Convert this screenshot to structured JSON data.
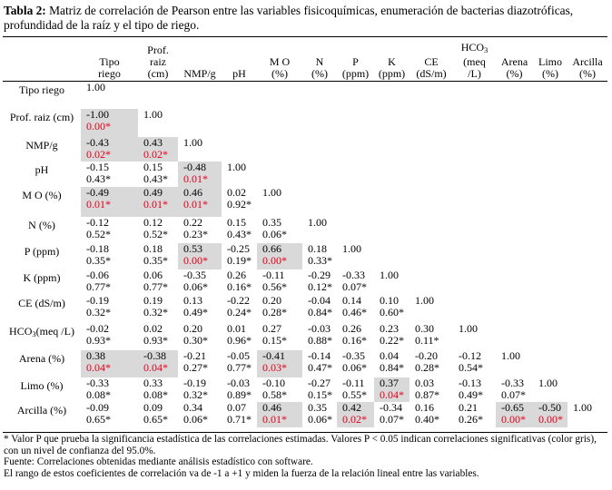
{
  "caption": {
    "label": "Tabla 2:",
    "text": " Matriz de correlación de Pearson entre las variables fisicoquímicas, enumeración de bacterias diazotróficas, profundidad de la raíz y el tipo de riego."
  },
  "columns": [
    {
      "key": "tipo",
      "line1": "Tipo",
      "line2": "riego",
      "line3": ""
    },
    {
      "key": "prof",
      "line1": "Prof.",
      "line2": "raiz",
      "line3": "(cm)"
    },
    {
      "key": "nmp",
      "line1": "NMP/g",
      "line2": "",
      "line3": ""
    },
    {
      "key": "ph",
      "line1": "pH",
      "line2": "",
      "line3": ""
    },
    {
      "key": "mo",
      "line1": "M O",
      "line2": "(%)",
      "line3": ""
    },
    {
      "key": "n",
      "line1": "N",
      "line2": "(%)",
      "line3": ""
    },
    {
      "key": "p",
      "line1": "P",
      "line2": "(ppm)",
      "line3": ""
    },
    {
      "key": "k",
      "line1": "K",
      "line2": "(ppm)",
      "line3": ""
    },
    {
      "key": "ce",
      "line1": "CE",
      "line2": "(dS/m)",
      "line3": ""
    },
    {
      "key": "hco3",
      "line1": "HCO3",
      "line2": "(meq",
      "line3": "/L)"
    },
    {
      "key": "arena",
      "line1": "Arena",
      "line2": "(%)",
      "line3": ""
    },
    {
      "key": "limo",
      "line1": "Limo",
      "line2": "(%)",
      "line3": ""
    },
    {
      "key": "arcilla",
      "line1": "Arcilla",
      "line2": "(%)",
      "line3": ""
    }
  ],
  "rows": [
    {
      "label": "Tipo riego",
      "cells": [
        {
          "r": "1.00",
          "p": "",
          "sig": false
        }
      ]
    },
    {
      "label": "Prof. raiz (cm)",
      "cells": [
        {
          "r": "-1.00",
          "p": "0.00*",
          "sig": true
        },
        {
          "r": "1.00",
          "p": "",
          "sig": false
        }
      ]
    },
    {
      "label": "NMP/g",
      "cells": [
        {
          "r": "-0.43",
          "p": "0.02*",
          "sig": true
        },
        {
          "r": "0.43",
          "p": "0.02*",
          "sig": true
        },
        {
          "r": "1.00",
          "p": "",
          "sig": false
        }
      ]
    },
    {
      "label": "pH",
      "cells": [
        {
          "r": "-0.15",
          "p": "0.43*",
          "sig": false
        },
        {
          "r": "0.15",
          "p": "0.43*",
          "sig": false
        },
        {
          "r": "-0.48",
          "p": "0.01*",
          "sig": true
        },
        {
          "r": "1.00",
          "p": "",
          "sig": false
        }
      ]
    },
    {
      "label": "M O (%)",
      "cells": [
        {
          "r": "-0.49",
          "p": "0.01*",
          "sig": true
        },
        {
          "r": "0.49",
          "p": "0.01*",
          "sig": true
        },
        {
          "r": "0.46",
          "p": "0.01*",
          "sig": true
        },
        {
          "r": "0.02",
          "p": "0.92*",
          "sig": false
        },
        {
          "r": "1.00",
          "p": "",
          "sig": false
        }
      ]
    },
    {
      "label": "N (%)",
      "cells": [
        {
          "r": "-0.12",
          "p": "0.52*",
          "sig": false
        },
        {
          "r": "0.12",
          "p": "0.52*",
          "sig": false
        },
        {
          "r": "0.22",
          "p": "0.23*",
          "sig": false
        },
        {
          "r": "0.15",
          "p": "0.43*",
          "sig": false
        },
        {
          "r": "0.35",
          "p": "0.06*",
          "sig": false
        },
        {
          "r": "1.00",
          "p": "",
          "sig": false
        }
      ]
    },
    {
      "label": "P (ppm)",
      "cells": [
        {
          "r": "-0.18",
          "p": "0.35*",
          "sig": false
        },
        {
          "r": "0.18",
          "p": "0.35*",
          "sig": false
        },
        {
          "r": "0.53",
          "p": "0.00*",
          "sig": true
        },
        {
          "r": "-0.25",
          "p": "0.19*",
          "sig": false
        },
        {
          "r": "0.66",
          "p": "0.00*",
          "sig": true
        },
        {
          "r": "0.18",
          "p": "0.33*",
          "sig": false
        },
        {
          "r": "1.00",
          "p": "",
          "sig": false
        }
      ]
    },
    {
      "label": "K (ppm)",
      "cells": [
        {
          "r": "-0.06",
          "p": "0.77*",
          "sig": false
        },
        {
          "r": "0.06",
          "p": "0.77*",
          "sig": false
        },
        {
          "r": "-0.35",
          "p": "0.06*",
          "sig": false
        },
        {
          "r": "0.26",
          "p": "0.16*",
          "sig": false
        },
        {
          "r": "-0.11",
          "p": "0.56*",
          "sig": false
        },
        {
          "r": "-0.29",
          "p": "0.12*",
          "sig": false
        },
        {
          "r": "-0.33",
          "p": "0.07*",
          "sig": false
        },
        {
          "r": "1.00",
          "p": "",
          "sig": false
        }
      ]
    },
    {
      "label": "CE (dS/m)",
      "cells": [
        {
          "r": "-0.19",
          "p": "0.32*",
          "sig": false
        },
        {
          "r": "0.19",
          "p": "0.32*",
          "sig": false
        },
        {
          "r": "0.13",
          "p": "0.49*",
          "sig": false
        },
        {
          "r": "-0.22",
          "p": "0.24*",
          "sig": false
        },
        {
          "r": "0.20",
          "p": "0.28*",
          "sig": false
        },
        {
          "r": "-0.04",
          "p": "0.84*",
          "sig": false
        },
        {
          "r": "0.14",
          "p": "0.46*",
          "sig": false
        },
        {
          "r": "0.10",
          "p": "0.60*",
          "sig": false
        },
        {
          "r": "1.00",
          "p": "",
          "sig": false
        }
      ]
    },
    {
      "label": "HCO3(meq /L)",
      "label_main": "HCO",
      "label_sub": "3",
      "label_rest": "(meq /L)",
      "cells": [
        {
          "r": "-0.02",
          "p": "0.93*",
          "sig": false
        },
        {
          "r": "0.02",
          "p": "0.93*",
          "sig": false
        },
        {
          "r": "0.20",
          "p": "0.30*",
          "sig": false
        },
        {
          "r": "0.01",
          "p": "0.96*",
          "sig": false
        },
        {
          "r": "0.27",
          "p": "0.15*",
          "sig": false
        },
        {
          "r": "-0.03",
          "p": "0.88*",
          "sig": false
        },
        {
          "r": "0.26",
          "p": "0.16*",
          "sig": false
        },
        {
          "r": "0.23",
          "p": "0.22*",
          "sig": false
        },
        {
          "r": "0.30",
          "p": "0.11*",
          "sig": false
        },
        {
          "r": "1.00",
          "p": "",
          "sig": false
        }
      ]
    },
    {
      "label": "Arena (%)",
      "cells": [
        {
          "r": "0.38",
          "p": "0.04*",
          "sig": true
        },
        {
          "r": "-0.38",
          "p": "0.04*",
          "sig": true
        },
        {
          "r": "-0.21",
          "p": "0.27*",
          "sig": false
        },
        {
          "r": "-0.05",
          "p": "0.77*",
          "sig": false
        },
        {
          "r": "-0.41",
          "p": "0.03*",
          "sig": true
        },
        {
          "r": "-0.14",
          "p": "0.47*",
          "sig": false
        },
        {
          "r": "-0.35",
          "p": "0.06*",
          "sig": false
        },
        {
          "r": "0.04",
          "p": "0.84*",
          "sig": false
        },
        {
          "r": "-0.20",
          "p": "0.28*",
          "sig": false
        },
        {
          "r": "-0.12",
          "p": "0.54*",
          "sig": false
        },
        {
          "r": "1.00",
          "p": "",
          "sig": false
        }
      ]
    },
    {
      "label": "Limo (%)",
      "cells": [
        {
          "r": "-0.33",
          "p": "0.08*",
          "sig": false
        },
        {
          "r": "0.33",
          "p": "0.08*",
          "sig": false
        },
        {
          "r": "-0.19",
          "p": "0.32*",
          "sig": false
        },
        {
          "r": "-0.03",
          "p": "0.89*",
          "sig": false
        },
        {
          "r": "-0.10",
          "p": "0.58*",
          "sig": false
        },
        {
          "r": "-0.27",
          "p": "0.15*",
          "sig": false
        },
        {
          "r": "-0.11",
          "p": "0.55*",
          "sig": false
        },
        {
          "r": "0.37",
          "p": "0.04*",
          "sig": true
        },
        {
          "r": "0.03",
          "p": "0.87*",
          "sig": false
        },
        {
          "r": "-0.13",
          "p": "0.49*",
          "sig": false
        },
        {
          "r": "-0.33",
          "p": "0.07*",
          "sig": false
        },
        {
          "r": "1.00",
          "p": "",
          "sig": false
        }
      ]
    },
    {
      "label": "Arcilla (%)",
      "cells": [
        {
          "r": "-0.09",
          "p": "0.65*",
          "sig": false
        },
        {
          "r": "0.09",
          "p": "0.65*",
          "sig": false
        },
        {
          "r": "0.34",
          "p": "0.06*",
          "sig": false
        },
        {
          "r": "0.07",
          "p": "0.71*",
          "sig": false
        },
        {
          "r": "0.46",
          "p": "0.01*",
          "sig": true
        },
        {
          "r": "0.35",
          "p": "0.06*",
          "sig": false
        },
        {
          "r": "0.42",
          "p": "0.02*",
          "sig": true
        },
        {
          "r": "-0.34",
          "p": "0.07*",
          "sig": false
        },
        {
          "r": "0.16",
          "p": "0.40*",
          "sig": false
        },
        {
          "r": "0.21",
          "p": "0.26*",
          "sig": false
        },
        {
          "r": "-0.65",
          "p": "0.00*",
          "sig": true
        },
        {
          "r": "-0.50",
          "p": "0.00*",
          "sig": true
        },
        {
          "r": "1.00",
          "p": "",
          "sig": false
        }
      ]
    }
  ],
  "colors": {
    "significant_bg": "#d9d9d9",
    "significant_p": "#e0001b"
  },
  "notes": {
    "line1": "* Valor P que prueba  la significancia estadística de las correlaciones estimadas.  Valores  P  < 0.05 indican correlaciones significativas (color gris), con un nivel de confianza del 95.0%.",
    "line2": "Fuente: Correlaciones obtenidas mediante análisis estadístico con software.",
    "line3": "El rango de estos coeficientes de correlación va de -1 a +1 y miden la fuerza de la relación lineal entre las variables."
  }
}
